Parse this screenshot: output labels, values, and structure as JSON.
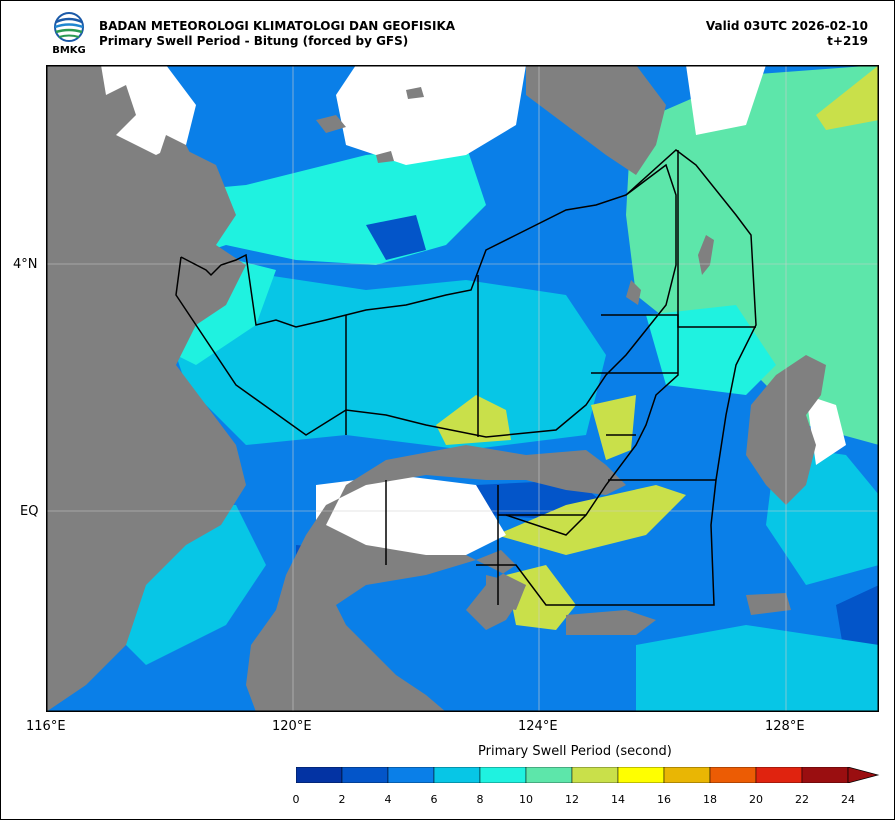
{
  "header": {
    "agency": "BADAN METEOROLOGI KLIMATOLOGI DAN GEOFISIKA",
    "product": "Primary Swell Period - Bitung (forced by GFS)",
    "valid": "Valid 03UTC 2026-02-10",
    "lead": "t+219",
    "logo_text": "BMKG"
  },
  "axes": {
    "lon_labels": [
      "116°E",
      "120°E",
      "124°E",
      "128°E"
    ],
    "lat_labels": [
      "4°N",
      "EQ"
    ]
  },
  "colorbar": {
    "title": "Primary Swell Period (second)",
    "ticks": [
      "0",
      "2",
      "4",
      "6",
      "8",
      "10",
      "12",
      "14",
      "16",
      "18",
      "20",
      "22",
      "24"
    ],
    "colors": [
      "#0333a3",
      "#0355c9",
      "#0a7fe8",
      "#07c6e6",
      "#1ff2e0",
      "#5de6aa",
      "#c9e04a",
      "#ffff00",
      "#e9b604",
      "#ec5c04",
      "#e0230f",
      "#9a0e10"
    ],
    "over_color": "#9a0e10"
  },
  "colors": {
    "land": "#808080",
    "nodata": "#ffffff",
    "boundary": "#000000"
  }
}
